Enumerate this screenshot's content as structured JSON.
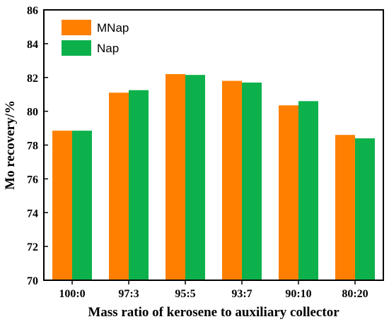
{
  "chart_data": {
    "type": "bar",
    "xlabel": "Mass ratio of  kerosene to auxiliary collector",
    "ylabel": "Mo recovery/%",
    "categories": [
      "100:0",
      "97:3",
      "95:5",
      "93:7",
      "90:10",
      "80:20"
    ],
    "series": [
      {
        "name": "MNap",
        "color": "#FF8000",
        "values": [
          78.85,
          81.1,
          82.2,
          81.8,
          80.35,
          78.6
        ]
      },
      {
        "name": "Nap",
        "color": "#0DB14B",
        "values": [
          78.85,
          81.25,
          82.15,
          81.7,
          80.6,
          78.4
        ]
      }
    ],
    "ylim": [
      70,
      86
    ],
    "yticks": [
      70,
      72,
      74,
      76,
      78,
      80,
      82,
      84,
      86
    ],
    "grid": false,
    "legend_position": "top-left"
  }
}
